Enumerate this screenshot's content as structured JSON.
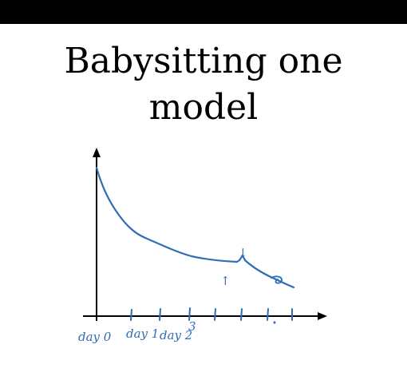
{
  "slide": {
    "title_line1": "Babysitting one",
    "title_line2": "model"
  },
  "sketch": {
    "ink_color": "#2f6db5",
    "axis_color": "#000000",
    "labels": {
      "day0": "day 0",
      "day1": "day 1",
      "day2": "day 2",
      "day3_mark": "3"
    },
    "annotations": [
      "↑",
      "↓"
    ]
  }
}
